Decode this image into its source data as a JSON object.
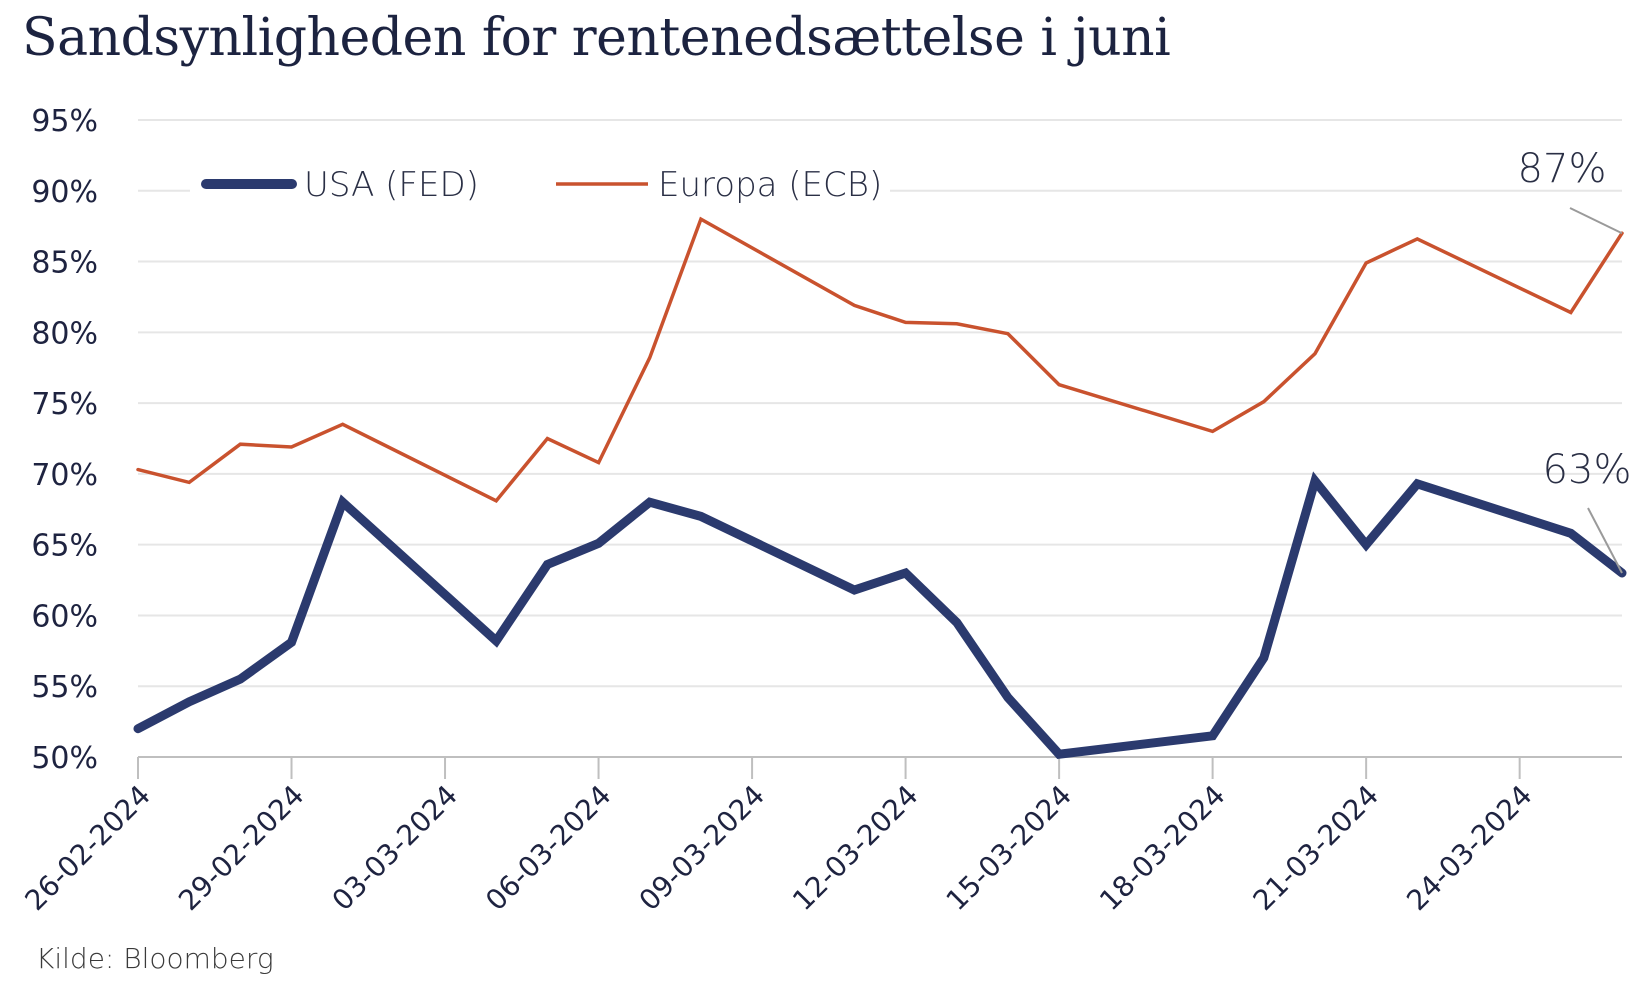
{
  "title": "Sandsynligheden for rentenedsættelse i juni",
  "source": "Kilde: Bloomberg",
  "colors": {
    "fed": "#2b3a6e",
    "ecb": "#c9522e",
    "grid": "#e6e6e6",
    "axis": "#bfbfbf",
    "annot_line": "#9a9a9a"
  },
  "chart_data": {
    "type": "line",
    "title": "Sandsynligheden for rentenedsættelse i juni",
    "xlabel": "",
    "ylabel": "",
    "ylim": [
      50,
      95
    ],
    "yticks": [
      "50%",
      "55%",
      "60%",
      "65%",
      "70%",
      "75%",
      "80%",
      "85%",
      "90%",
      "95%"
    ],
    "ytick_values": [
      50,
      55,
      60,
      65,
      70,
      75,
      80,
      85,
      90,
      95
    ],
    "xlim": [
      "2024-02-26",
      "2024-03-26"
    ],
    "xticks": [
      "26-02-2024",
      "29-02-2024",
      "03-03-2024",
      "06-03-2024",
      "09-03-2024",
      "12-03-2024",
      "15-03-2024",
      "18-03-2024",
      "21-03-2024",
      "24-03-2024"
    ],
    "xtick_dates": [
      "2024-02-26",
      "2024-02-29",
      "2024-03-03",
      "2024-03-06",
      "2024-03-09",
      "2024-03-12",
      "2024-03-15",
      "2024-03-18",
      "2024-03-21",
      "2024-03-24"
    ],
    "grid": true,
    "legend": "top-left",
    "series": [
      {
        "name": "USA (FED)",
        "color": "#2b3a6e",
        "points": [
          [
            "2024-02-26",
            52.0
          ],
          [
            "2024-02-27",
            53.9
          ],
          [
            "2024-02-28",
            55.5
          ],
          [
            "2024-02-29",
            58.1
          ],
          [
            "2024-03-01",
            68.0
          ],
          [
            "2024-03-04",
            58.2
          ],
          [
            "2024-03-05",
            63.6
          ],
          [
            "2024-03-06",
            65.1
          ],
          [
            "2024-03-07",
            68.0
          ],
          [
            "2024-03-08",
            67.0
          ],
          [
            "2024-03-11",
            61.8
          ],
          [
            "2024-03-12",
            63.0
          ],
          [
            "2024-03-13",
            59.5
          ],
          [
            "2024-03-14",
            54.2
          ],
          [
            "2024-03-15",
            50.2
          ],
          [
            "2024-03-18",
            51.5
          ],
          [
            "2024-03-19",
            57.0
          ],
          [
            "2024-03-20",
            69.5
          ],
          [
            "2024-03-21",
            65.0
          ],
          [
            "2024-03-22",
            69.3
          ],
          [
            "2024-03-25",
            65.8
          ],
          [
            "2024-03-26",
            63.0
          ]
        ]
      },
      {
        "name": "Europa (ECB)",
        "color": "#c9522e",
        "points": [
          [
            "2024-02-26",
            70.3
          ],
          [
            "2024-02-27",
            69.4
          ],
          [
            "2024-02-28",
            72.1
          ],
          [
            "2024-02-29",
            71.9
          ],
          [
            "2024-03-01",
            73.5
          ],
          [
            "2024-03-04",
            68.1
          ],
          [
            "2024-03-05",
            72.5
          ],
          [
            "2024-03-06",
            70.8
          ],
          [
            "2024-03-07",
            78.2
          ],
          [
            "2024-03-08",
            88.0
          ],
          [
            "2024-03-11",
            81.9
          ],
          [
            "2024-03-12",
            80.7
          ],
          [
            "2024-03-13",
            80.6
          ],
          [
            "2024-03-14",
            79.9
          ],
          [
            "2024-03-15",
            76.3
          ],
          [
            "2024-03-18",
            73.0
          ],
          [
            "2024-03-19",
            75.1
          ],
          [
            "2024-03-20",
            78.5
          ],
          [
            "2024-03-21",
            84.9
          ],
          [
            "2024-03-22",
            86.6
          ],
          [
            "2024-03-25",
            81.4
          ],
          [
            "2024-03-26",
            87.0
          ]
        ]
      }
    ],
    "annotations": [
      {
        "text": "87%",
        "series": "Europa (ECB)",
        "date": "2024-03-26",
        "value": 87
      },
      {
        "text": "63%",
        "series": "USA (FED)",
        "date": "2024-03-26",
        "value": 63
      }
    ]
  }
}
